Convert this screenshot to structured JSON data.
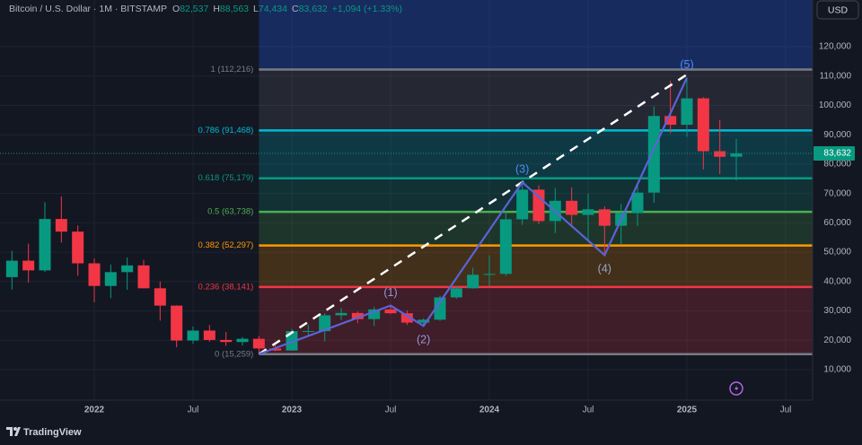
{
  "chart_data": {
    "type": "candlestick",
    "header": {
      "symbol": "Bitcoin / U.S. Dollar · 1M · BITSTAMP",
      "ohlc": [
        {
          "key": "O",
          "value": 82537,
          "label": "82,537"
        },
        {
          "key": "H",
          "value": 88563,
          "label": "88,563"
        },
        {
          "key": "L",
          "value": 74434,
          "label": "74,434"
        },
        {
          "key": "C",
          "value": 83632,
          "label": "83,632"
        }
      ],
      "change": "+1,094 (+1.33%)"
    },
    "currency": "USD",
    "x": [
      "2021-08",
      "2021-09",
      "2021-10",
      "2021-11",
      "2021-12",
      "2022-01",
      "2022-02",
      "2022-03",
      "2022-04",
      "2022-05",
      "2022-06",
      "2022-07",
      "2022-08",
      "2022-09",
      "2022-10",
      "2022-11",
      "2022-12",
      "2023-01",
      "2023-02",
      "2023-03",
      "2023-04",
      "2023-05",
      "2023-06",
      "2023-07",
      "2023-08",
      "2023-09",
      "2023-10",
      "2023-11",
      "2023-12",
      "2024-01",
      "2024-02",
      "2024-03",
      "2024-04",
      "2024-05",
      "2024-06",
      "2024-07",
      "2024-08",
      "2024-09",
      "2024-10",
      "2024-11",
      "2024-12",
      "2025-01",
      "2025-02",
      "2025-03",
      "2025-04"
    ],
    "open": [
      41500,
      47100,
      43800,
      61300,
      57000,
      46200,
      38500,
      43200,
      45500,
      37700,
      31800,
      19900,
      23300,
      20100,
      19400,
      20500,
      17200,
      16500,
      23100,
      23100,
      28500,
      29300,
      27200,
      30500,
      29200,
      26000,
      27000,
      34600,
      37700,
      42300,
      42600,
      61200,
      71300,
      60600,
      67500,
      62700,
      64600,
      59000,
      63300,
      70300,
      96400,
      93400,
      102400,
      84400,
      82537
    ],
    "high": [
      50500,
      52900,
      67000,
      69000,
      59100,
      47900,
      45800,
      48200,
      47400,
      40000,
      31900,
      24700,
      25200,
      22800,
      21100,
      21500,
      18400,
      23900,
      25300,
      29200,
      31000,
      29800,
      31400,
      31800,
      30200,
      27500,
      35200,
      38400,
      44700,
      48900,
      64000,
      73800,
      72800,
      71900,
      72000,
      70000,
      65600,
      66500,
      73600,
      99600,
      108400,
      109400,
      102800,
      95000,
      88563
    ],
    "low": [
      37300,
      39600,
      43300,
      53300,
      42000,
      32900,
      34300,
      37200,
      37700,
      26700,
      17600,
      18800,
      19500,
      18100,
      18200,
      15500,
      16300,
      16500,
      21400,
      19600,
      26900,
      25800,
      24800,
      28900,
      25200,
      24900,
      26600,
      34100,
      37600,
      38500,
      41900,
      59300,
      59600,
      56500,
      58400,
      53500,
      49000,
      52500,
      58900,
      66800,
      90500,
      89300,
      78200,
      76600,
      74434
    ],
    "close": [
      47100,
      43800,
      61300,
      57000,
      46200,
      38500,
      43200,
      45500,
      37700,
      31800,
      19900,
      23300,
      20100,
      19400,
      20500,
      17200,
      16500,
      23100,
      23140,
      28500,
      29300,
      27200,
      30500,
      29200,
      26000,
      27000,
      34600,
      37700,
      42300,
      42600,
      61200,
      71300,
      60600,
      67500,
      62700,
      64600,
      59000,
      63300,
      70300,
      96400,
      93400,
      102400,
      84400,
      82500,
      83632
    ],
    "up_color": "#089981",
    "down_color": "#f23645",
    "ylim": [
      -400,
      135900
    ],
    "yticks": [
      {
        "value": 10000,
        "label": "10,000"
      },
      {
        "value": 20000,
        "label": "20,000"
      },
      {
        "value": 30000,
        "label": "30,000"
      },
      {
        "value": 40000,
        "label": "40,000"
      },
      {
        "value": 50000,
        "label": "50,000"
      },
      {
        "value": 60000,
        "label": "60,000"
      },
      {
        "value": 70000,
        "label": "70,000"
      },
      {
        "value": 80000,
        "label": "80,000"
      },
      {
        "value": 90000,
        "label": "90,000"
      },
      {
        "value": 100000,
        "label": "100,000"
      },
      {
        "value": 110000,
        "label": "110,000"
      },
      {
        "value": 120000,
        "label": "120,000"
      }
    ],
    "xlim": [
      "2021-07",
      "2025-09"
    ],
    "xticks": [
      {
        "value": "2022-01",
        "label": "2022"
      },
      {
        "value": "2022-07",
        "label": "Jul"
      },
      {
        "value": "2023-01",
        "label": "2023"
      },
      {
        "value": "2023-07",
        "label": "Jul"
      },
      {
        "value": "2024-01",
        "label": "2024"
      },
      {
        "value": "2024-07",
        "label": "Jul"
      },
      {
        "value": "2025-01",
        "label": "2025"
      },
      {
        "value": "2025-07",
        "label": "Jul"
      }
    ],
    "grid": true,
    "fib": {
      "start": "2022-11",
      "top_color": "#2962ff",
      "levels": [
        {
          "value": 112216,
          "label": "1 (112,216)",
          "color": "#787b86"
        },
        {
          "value": 91468,
          "label": "0.786 (91,468)",
          "color": "#00bcd4"
        },
        {
          "value": 75179,
          "label": "0.618 (75,179)",
          "color": "#089981"
        },
        {
          "value": 63738,
          "label": "0.5 (63,738)",
          "color": "#4caf50"
        },
        {
          "value": 52297,
          "label": "0.382 (52,297)",
          "color": "#ff9800"
        },
        {
          "value": 38141,
          "label": "0.236 (38,141)",
          "color": "#f23645"
        },
        {
          "value": 15259,
          "label": "0 (15,259)",
          "color": "#787b86"
        }
      ]
    },
    "waves": {
      "color": "#5b63d6",
      "x": [
        "2022-11",
        "2023-07",
        "2023-09",
        "2024-03",
        "2024-08",
        "2025-01"
      ],
      "values": [
        15259,
        31800,
        24900,
        73800,
        49000,
        109400
      ],
      "labels": [
        null,
        "(1)",
        "(2)",
        "(3)",
        "(4)",
        "(5)"
      ],
      "label_colors": [
        null,
        "#9598d8",
        "#9598d8",
        "#4d8df6",
        "#9aa5c8",
        "#4d8df6"
      ]
    },
    "trendline": {
      "x": [
        "2022-11",
        "2025-01"
      ],
      "values": [
        15259,
        110500
      ],
      "color": "#ffffff"
    }
  },
  "footer": "TradingView"
}
